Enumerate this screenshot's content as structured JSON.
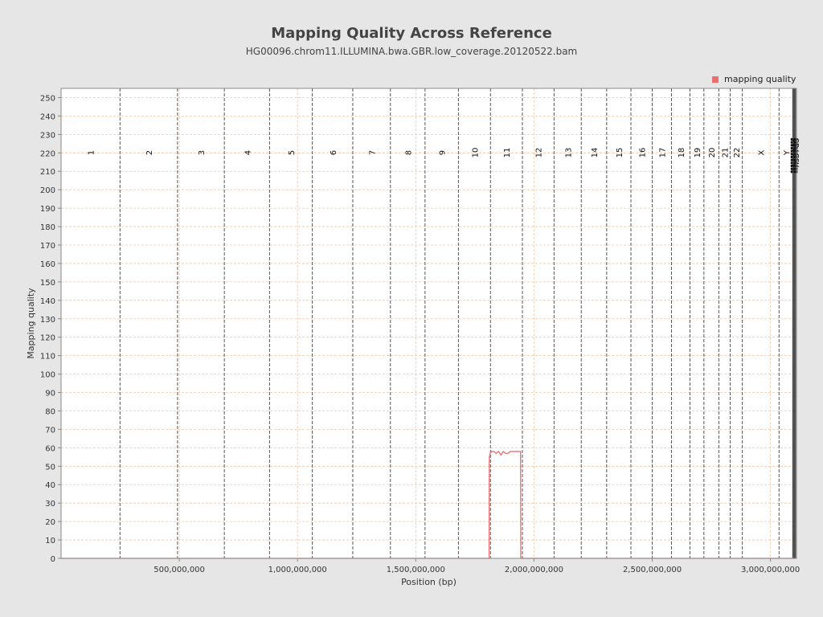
{
  "chart_data": {
    "type": "line",
    "title": "Mapping Quality Across Reference",
    "subtitle": "HG00096.chrom11.ILLUMINA.bwa.GBR.low_coverage.20120522.bam",
    "xlabel": "Position (bp)",
    "ylabel": "Mapping quality",
    "xlim": [
      0,
      3110000000
    ],
    "ylim": [
      0,
      255
    ],
    "x_ticks": [
      500000000,
      1000000000,
      1500000000,
      2000000000,
      2500000000,
      3000000000
    ],
    "x_tick_labels": [
      "500,000,000",
      "1,000,000,000",
      "1,500,000,000",
      "2,000,000,000",
      "2,500,000,000",
      "3,000,000,000"
    ],
    "y_ticks": [
      0,
      10,
      20,
      30,
      40,
      50,
      60,
      70,
      80,
      90,
      100,
      110,
      120,
      130,
      140,
      150,
      160,
      170,
      180,
      190,
      200,
      210,
      220,
      230,
      240,
      250
    ],
    "grid": true,
    "legend_position": "top-right",
    "series": [
      {
        "name": "mapping quality",
        "color": "#e87070",
        "points": [
          [
            0,
            0
          ],
          [
            1810000000,
            0
          ],
          [
            1811000000,
            55
          ],
          [
            1815000000,
            57
          ],
          [
            1820000000,
            58
          ],
          [
            1830000000,
            58
          ],
          [
            1840000000,
            57
          ],
          [
            1850000000,
            58
          ],
          [
            1860000000,
            56
          ],
          [
            1870000000,
            58
          ],
          [
            1880000000,
            57
          ],
          [
            1890000000,
            57
          ],
          [
            1900000000,
            58
          ],
          [
            1910000000,
            58
          ],
          [
            1920000000,
            58
          ],
          [
            1940000000,
            58
          ],
          [
            1943000000,
            58
          ],
          [
            1944000000,
            0
          ],
          [
            3110000000,
            0
          ]
        ]
      }
    ],
    "chromosome_boundaries": [
      {
        "label": "1",
        "start": 0
      },
      {
        "label": "2",
        "start": 249250621
      },
      {
        "label": "3",
        "start": 492449994
      },
      {
        "label": "4",
        "start": 690472424
      },
      {
        "label": "5",
        "start": 881626700
      },
      {
        "label": "6",
        "start": 1062541960
      },
      {
        "label": "7",
        "start": 1233657027
      },
      {
        "label": "8",
        "start": 1392795690
      },
      {
        "label": "9",
        "start": 1539159712
      },
      {
        "label": "10",
        "start": 1680373143
      },
      {
        "label": "11",
        "start": 1815907890
      },
      {
        "label": "12",
        "start": 1950914406
      },
      {
        "label": "13",
        "start": 2084766301
      },
      {
        "label": "14",
        "start": 2199936179
      },
      {
        "label": "15",
        "start": 2307285719
      },
      {
        "label": "16",
        "start": 2409817111
      },
      {
        "label": "17",
        "start": 2500171864
      },
      {
        "label": "18",
        "start": 2581367074
      },
      {
        "label": "19",
        "start": 2659444322
      },
      {
        "label": "20",
        "start": 2718573305
      },
      {
        "label": "21",
        "start": 2781598825
      },
      {
        "label": "22",
        "start": 2829728720
      },
      {
        "label": "X",
        "start": 2881033286
      },
      {
        "label": "Y",
        "start": 3036303846
      },
      {
        "label": "hs37d5",
        "start": 3095677412
      }
    ],
    "contig_markers_start": 3095677412,
    "contig_markers_end": 3101000000
  }
}
